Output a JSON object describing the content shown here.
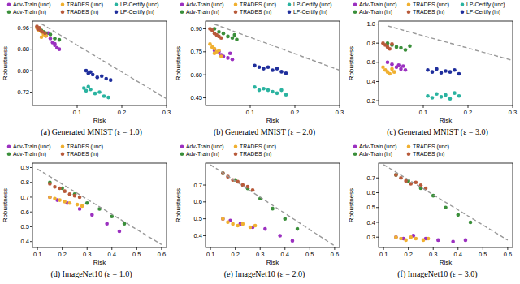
{
  "chart_data": [
    {
      "type": "scatter",
      "title": "(a) Generated MNIST (ε = 1.0)",
      "x_label": "Risk",
      "y_label": "Robustness",
      "xlim": [
        0,
        0.3
      ],
      "ylim": [
        0.67,
        0.985
      ],
      "xticks": [
        0.1,
        0.2,
        0.3
      ],
      "yticks": [
        0.72,
        {
          "value": 0.8,
          "label": "0.80"
        },
        0.88,
        0.96
      ],
      "legend": "top",
      "grid": false,
      "series": [
        {
          "name": "Adv-Train (unc)",
          "color": "#9b30c0",
          "marker": "circle",
          "x": [
            0.03,
            0.04,
            0.045,
            0.05,
            0.055,
            0.06,
            0.035,
            0.05
          ],
          "values": [
            0.93,
            0.92,
            0.905,
            0.9,
            0.885,
            0.88,
            0.94,
            0.895
          ]
        },
        {
          "name": "Adv-Train (in)",
          "color": "#3a8f3a",
          "marker": "circle",
          "x": [
            0.015,
            0.02,
            0.03,
            0.04,
            0.05,
            0.06,
            0.025
          ],
          "values": [
            0.955,
            0.95,
            0.94,
            0.935,
            0.92,
            0.915,
            0.945
          ]
        },
        {
          "name": "TRADES (unc)",
          "color": "#f0b030",
          "marker": "circle",
          "x": [
            0.01,
            0.015,
            0.02,
            0.025,
            0.03,
            0.02
          ],
          "values": [
            0.96,
            0.95,
            0.945,
            0.935,
            0.93,
            0.925
          ]
        },
        {
          "name": "TRADES (in)",
          "color": "#b85a3a",
          "marker": "circle",
          "x": [
            0.01,
            0.012,
            0.018,
            0.022,
            0.028,
            0.015
          ],
          "values": [
            0.965,
            0.955,
            0.95,
            0.945,
            0.94,
            0.96
          ]
        },
        {
          "name": "LP-Certify (unc)",
          "color": "#2ab3a0",
          "marker": "circle",
          "x": [
            0.115,
            0.12,
            0.13,
            0.14,
            0.15,
            0.16,
            0.17,
            0.125
          ],
          "values": [
            0.735,
            0.725,
            0.73,
            0.715,
            0.72,
            0.705,
            0.7,
            0.74
          ]
        },
        {
          "name": "LP-Certify (in)",
          "color": "#1f2e9c",
          "marker": "circle",
          "x": [
            0.12,
            0.125,
            0.135,
            0.145,
            0.155,
            0.165,
            0.175,
            0.13
          ],
          "values": [
            0.8,
            0.79,
            0.785,
            0.775,
            0.78,
            0.77,
            0.765,
            0.795
          ]
        },
        {
          "type": "line",
          "color": "#999999",
          "line_style": "dashed",
          "x": [
            0.02,
            0.3
          ],
          "values": [
            0.975,
            0.695
          ]
        }
      ]
    },
    {
      "type": "scatter",
      "title": "(b) Generated MNIST (ε = 2.0)",
      "x_label": "Risk",
      "y_label": "Robustness",
      "xlim": [
        0,
        0.3
      ],
      "ylim": [
        0.4,
        0.95
      ],
      "xticks": [
        0.1,
        0.2,
        0.3
      ],
      "yticks": [
        0.45,
        {
          "value": 0.6,
          "label": "0.60"
        },
        0.75,
        {
          "value": 0.9,
          "label": "0.90"
        }
      ],
      "legend": "top",
      "grid": false,
      "series": [
        {
          "name": "Adv-Train (unc)",
          "color": "#9b30c0",
          "marker": "circle",
          "x": [
            0.02,
            0.03,
            0.035,
            0.04,
            0.05,
            0.055,
            0.06
          ],
          "values": [
            0.76,
            0.75,
            0.73,
            0.72,
            0.71,
            0.74,
            0.7
          ]
        },
        {
          "name": "Adv-Train (in)",
          "color": "#3a8f3a",
          "marker": "circle",
          "x": [
            0.02,
            0.03,
            0.04,
            0.05,
            0.06,
            0.07,
            0.065
          ],
          "values": [
            0.9,
            0.88,
            0.87,
            0.85,
            0.84,
            0.83,
            0.86
          ]
        },
        {
          "name": "TRADES (unc)",
          "color": "#f0b030",
          "marker": "circle",
          "x": [
            0.01,
            0.015,
            0.02,
            0.025,
            0.03,
            0.035,
            0.02
          ],
          "values": [
            0.8,
            0.78,
            0.77,
            0.75,
            0.76,
            0.72,
            0.74
          ]
        },
        {
          "name": "TRADES (in)",
          "color": "#b85a3a",
          "marker": "circle",
          "x": [
            0.01,
            0.015,
            0.02,
            0.025,
            0.03,
            0.035
          ],
          "values": [
            0.9,
            0.89,
            0.87,
            0.86,
            0.85,
            0.84
          ]
        },
        {
          "name": "LP-Certify (unc)",
          "color": "#2ab3a0",
          "marker": "circle",
          "x": [
            0.11,
            0.12,
            0.13,
            0.14,
            0.15,
            0.16,
            0.17,
            0.18
          ],
          "values": [
            0.52,
            0.5,
            0.51,
            0.5,
            0.49,
            0.48,
            0.5,
            0.47
          ]
        },
        {
          "name": "LP-Certify (in)",
          "color": "#1f2e9c",
          "marker": "circle",
          "x": [
            0.11,
            0.12,
            0.13,
            0.14,
            0.15,
            0.16,
            0.17,
            0.18
          ],
          "values": [
            0.66,
            0.65,
            0.64,
            0.65,
            0.63,
            0.64,
            0.62,
            0.61
          ]
        },
        {
          "type": "line",
          "color": "#999999",
          "line_style": "dashed",
          "x": [
            0.02,
            0.3
          ],
          "values": [
            0.93,
            0.63
          ]
        }
      ]
    },
    {
      "type": "scatter",
      "title": "(c) Generated MNIST (ε = 3.0)",
      "x_label": "Risk",
      "y_label": "Robustness",
      "xlim": [
        0,
        0.3
      ],
      "ylim": [
        0.15,
        1.03
      ],
      "xticks": [
        0.1,
        0.2,
        0.3
      ],
      "yticks": [
        0.2,
        0.4,
        0.6,
        0.8,
        {
          "value": 1,
          "label": "1.0"
        }
      ],
      "legend": "top",
      "grid": false,
      "series": [
        {
          "name": "Adv-Train (unc)",
          "color": "#9b30c0",
          "marker": "circle",
          "x": [
            0.02,
            0.03,
            0.04,
            0.045,
            0.05,
            0.055,
            0.06
          ],
          "values": [
            0.6,
            0.58,
            0.55,
            0.57,
            0.53,
            0.56,
            0.52
          ]
        },
        {
          "name": "Adv-Train (in)",
          "color": "#3a8f3a",
          "marker": "circle",
          "x": [
            0.02,
            0.03,
            0.04,
            0.05,
            0.06,
            0.07
          ],
          "values": [
            0.8,
            0.78,
            0.76,
            0.75,
            0.73,
            0.77
          ]
        },
        {
          "name": "TRADES (unc)",
          "color": "#f0b030",
          "marker": "circle",
          "x": [
            0.01,
            0.015,
            0.02,
            0.025,
            0.03,
            0.035
          ],
          "values": [
            0.55,
            0.52,
            0.5,
            0.48,
            0.53,
            0.5
          ]
        },
        {
          "name": "TRADES (in)",
          "color": "#b85a3a",
          "marker": "circle",
          "x": [
            0.01,
            0.015,
            0.02,
            0.025,
            0.03
          ],
          "values": [
            0.8,
            0.78,
            0.76,
            0.74,
            0.79
          ]
        },
        {
          "name": "LP-Certify (unc)",
          "color": "#2ab3a0",
          "marker": "circle",
          "x": [
            0.11,
            0.12,
            0.13,
            0.14,
            0.15,
            0.16,
            0.17,
            0.18
          ],
          "values": [
            0.25,
            0.23,
            0.27,
            0.24,
            0.26,
            0.22,
            0.28,
            0.25
          ]
        },
        {
          "name": "LP-Certify (in)",
          "color": "#1f2e9c",
          "marker": "circle",
          "x": [
            0.11,
            0.12,
            0.13,
            0.14,
            0.15,
            0.16,
            0.17,
            0.18
          ],
          "values": [
            0.52,
            0.5,
            0.53,
            0.49,
            0.51,
            0.5,
            0.52,
            0.48
          ]
        },
        {
          "type": "line",
          "color": "#999999",
          "line_style": "dashed",
          "x": [
            0.02,
            0.3
          ],
          "values": [
            0.98,
            0.62
          ]
        }
      ]
    },
    {
      "type": "scatter",
      "title": "(d) ImageNet10 (ε = 1.0)",
      "x_label": "Risk",
      "y_label": "Robustness",
      "xlim": [
        0.08,
        0.62
      ],
      "ylim": [
        0.36,
        0.93
      ],
      "xticks": [
        0.1,
        0.2,
        0.3,
        0.4,
        0.5,
        0.6
      ],
      "yticks": [
        0.4,
        0.5,
        0.6,
        0.7,
        0.8,
        0.9
      ],
      "legend": "top",
      "grid": false,
      "series": [
        {
          "name": "Adv-Train (unc)",
          "color": "#9b30c0",
          "marker": "circle",
          "x": [
            0.15,
            0.18,
            0.22,
            0.27,
            0.32,
            0.38,
            0.43
          ],
          "values": [
            0.7,
            0.68,
            0.66,
            0.62,
            0.58,
            0.52,
            0.47
          ]
        },
        {
          "name": "Adv-Train (in)",
          "color": "#3a8f3a",
          "marker": "circle",
          "x": [
            0.15,
            0.2,
            0.25,
            0.3,
            0.35,
            0.4,
            0.45
          ],
          "values": [
            0.8,
            0.76,
            0.72,
            0.66,
            0.62,
            0.57,
            0.52
          ]
        },
        {
          "name": "TRADES (unc)",
          "color": "#f0b030",
          "marker": "circle",
          "x": [
            0.15,
            0.17,
            0.19,
            0.21,
            0.23,
            0.26,
            0.28
          ],
          "values": [
            0.7,
            0.69,
            0.68,
            0.67,
            0.66,
            0.65,
            0.64
          ]
        },
        {
          "name": "TRADES (in)",
          "color": "#b85a3a",
          "marker": "circle",
          "x": [
            0.15,
            0.17,
            0.19,
            0.21,
            0.23,
            0.25,
            0.27
          ],
          "values": [
            0.79,
            0.77,
            0.76,
            0.74,
            0.72,
            0.71,
            0.7
          ]
        },
        {
          "type": "line",
          "color": "#999999",
          "line_style": "dashed",
          "x": [
            0.1,
            0.6
          ],
          "values": [
            0.89,
            0.38
          ]
        }
      ]
    },
    {
      "type": "scatter",
      "title": "(e) ImageNet10 (ε = 2.0)",
      "x_label": "Risk",
      "y_label": "Robustness",
      "xlim": [
        0.08,
        0.62
      ],
      "ylim": [
        0.33,
        0.83
      ],
      "xticks": [
        0.1,
        0.2,
        0.3,
        0.4,
        0.5,
        0.6
      ],
      "yticks": [
        0.4,
        0.5,
        0.6,
        0.7
      ],
      "legend": "top",
      "grid": false,
      "series": [
        {
          "name": "Adv-Train (unc)",
          "color": "#9b30c0",
          "marker": "circle",
          "x": [
            0.15,
            0.18,
            0.22,
            0.27,
            0.32,
            0.38,
            0.43
          ],
          "values": [
            0.5,
            0.49,
            0.47,
            0.45,
            0.44,
            0.4,
            0.37
          ]
        },
        {
          "name": "Adv-Train (in)",
          "color": "#3a8f3a",
          "marker": "circle",
          "x": [
            0.15,
            0.2,
            0.25,
            0.3,
            0.35,
            0.4,
            0.45
          ],
          "values": [
            0.77,
            0.73,
            0.68,
            0.62,
            0.56,
            0.5,
            0.44
          ]
        },
        {
          "name": "TRADES (unc)",
          "color": "#f0b030",
          "marker": "circle",
          "x": [
            0.15,
            0.17,
            0.19,
            0.21,
            0.23,
            0.26,
            0.28
          ],
          "values": [
            0.5,
            0.48,
            0.47,
            0.46,
            0.47,
            0.45,
            0.46
          ]
        },
        {
          "name": "TRADES (in)",
          "color": "#b85a3a",
          "marker": "circle",
          "x": [
            0.15,
            0.17,
            0.19,
            0.21,
            0.23,
            0.25,
            0.27
          ],
          "values": [
            0.77,
            0.75,
            0.73,
            0.72,
            0.7,
            0.69,
            0.67
          ]
        },
        {
          "type": "line",
          "color": "#999999",
          "line_style": "dashed",
          "x": [
            0.1,
            0.6
          ],
          "values": [
            0.82,
            0.34
          ]
        }
      ]
    },
    {
      "type": "scatter",
      "title": "(f) ImageNet10 (ε = 3.0)",
      "x_label": "Risk",
      "y_label": "Robustness",
      "xlim": [
        0.08,
        0.62
      ],
      "ylim": [
        0.23,
        0.8
      ],
      "xticks": [
        0.1,
        0.2,
        0.3,
        0.4,
        0.5,
        0.6
      ],
      "yticks": [
        0.3,
        0.4,
        0.5,
        0.6,
        0.7
      ],
      "legend": "top",
      "grid": false,
      "series": [
        {
          "name": "Adv-Train (unc)",
          "color": "#9b30c0",
          "marker": "circle",
          "x": [
            0.15,
            0.18,
            0.22,
            0.27,
            0.32,
            0.38,
            0.43
          ],
          "values": [
            0.3,
            0.29,
            0.31,
            0.29,
            0.28,
            0.27,
            0.28
          ]
        },
        {
          "name": "Adv-Train (in)",
          "color": "#3a8f3a",
          "marker": "circle",
          "x": [
            0.15,
            0.2,
            0.25,
            0.3,
            0.35,
            0.4,
            0.45
          ],
          "values": [
            0.72,
            0.68,
            0.63,
            0.58,
            0.5,
            0.45,
            0.4
          ]
        },
        {
          "name": "TRADES (unc)",
          "color": "#f0b030",
          "marker": "circle",
          "x": [
            0.15,
            0.17,
            0.19,
            0.21,
            0.23,
            0.26,
            0.28
          ],
          "values": [
            0.3,
            0.29,
            0.28,
            0.3,
            0.29,
            0.28,
            0.29
          ]
        },
        {
          "name": "TRADES (in)",
          "color": "#b85a3a",
          "marker": "circle",
          "x": [
            0.15,
            0.17,
            0.19,
            0.21,
            0.23,
            0.25,
            0.27
          ],
          "values": [
            0.72,
            0.7,
            0.68,
            0.66,
            0.67,
            0.65,
            0.63
          ]
        },
        {
          "type": "line",
          "color": "#999999",
          "line_style": "dashed",
          "x": [
            0.1,
            0.6
          ],
          "values": [
            0.79,
            0.28
          ]
        }
      ]
    }
  ]
}
